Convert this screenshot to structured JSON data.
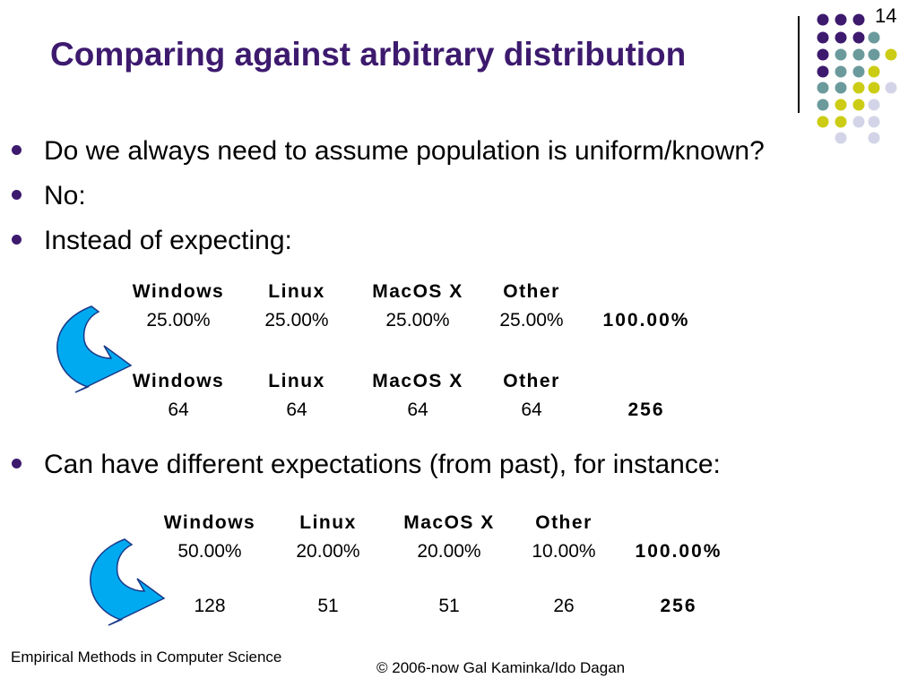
{
  "slide": {
    "title": "Comparing against arbitrary distribution",
    "number": "14"
  },
  "bullets": [
    "Do we always need to assume population is uniform/known?",
    "No:",
    "Instead of expecting:",
    "Can have different expectations (from past), for instance:"
  ],
  "table1": {
    "headers": [
      "Windows",
      "Linux",
      "MacOS X",
      "Other"
    ],
    "percents": [
      "25.00%",
      "25.00%",
      "25.00%",
      "25.00%"
    ],
    "percent_total": "100.00%"
  },
  "table2": {
    "headers": [
      "Windows",
      "Linux",
      "MacOS X",
      "Other"
    ],
    "counts": [
      "64",
      "64",
      "64",
      "64"
    ],
    "count_total": "256"
  },
  "table3": {
    "headers": [
      "Windows",
      "Linux",
      "MacOS X",
      "Other"
    ],
    "percents": [
      "50.00%",
      "20.00%",
      "20.00%",
      "10.00%"
    ],
    "percent_total": "100.00%",
    "counts": [
      "128",
      "51",
      "51",
      "26"
    ],
    "count_total": "256"
  },
  "footer": {
    "left": "Empirical Methods in Computer Science",
    "right": "© 2006-now  Gal Kaminka/Ido Dagan"
  },
  "colors": {
    "title": "#3d1a6e",
    "arrow": "#00aaf0",
    "dot_purple": "#3d1a6e",
    "dot_teal": "#6b9a9c",
    "dot_yellow": "#cccc14",
    "dot_lavender": "#d4d4e8"
  },
  "icons": [
    "curved-arrow-icon",
    "decorative-dot-grid"
  ]
}
